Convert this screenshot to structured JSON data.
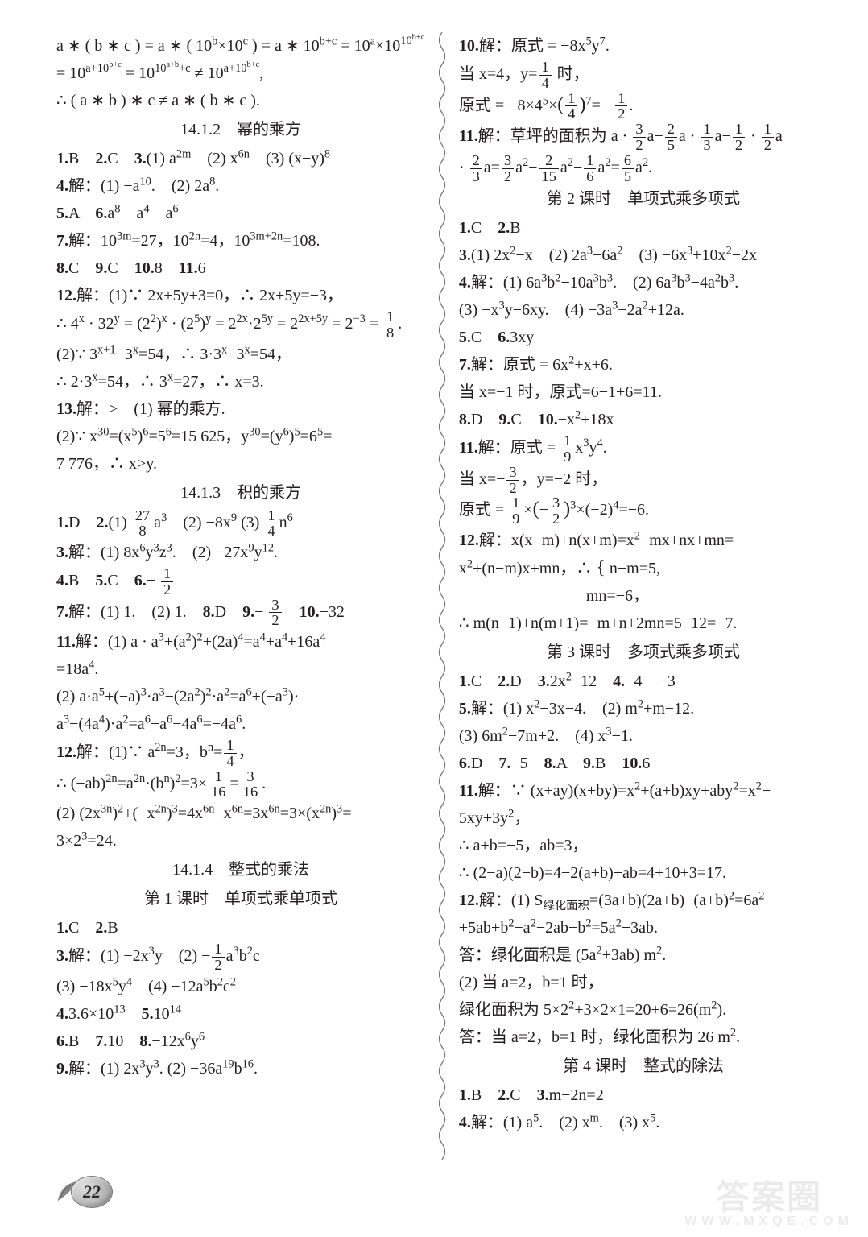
{
  "page_number": "22",
  "watermark": {
    "main": "答案圈",
    "sub": "WWW.MXQE.COM"
  },
  "left": {
    "top": [
      "a ∗ ( b ∗ c ) = a ∗ ( 10<sup>b</sup>×10<sup>c</sup> ) = a ∗ 10<sup>b+c</sup> = 10<sup>a</sup>×10<sup>10<sup>b+c</sup></sup>",
      "= 10<sup>a+10<sup>b+c</sup></sup> = 10<sup>10<sup>a+b</sup>+c</sup> ≠ 10<sup>a+10<sup>b+c</sup></sup>,",
      "∴ ( a ∗ b ) ∗ c ≠ a ∗ ( b ∗ c )."
    ],
    "s1412_title": "14.1.2　幂的乘方",
    "s1412": [
      "<b>1.</b>B　<b>2.</b>C　<b>3.</b>(1) a<sup>2m</sup>　(2) x<sup>6n</sup>　(3) (x−y)<sup>8</sup>",
      "<b>4.</b>解：(1) −a<sup>10</sup>.　(2) 2a<sup>8</sup>.",
      "<b>5.</b>A　<b>6.</b>a<sup>8</sup>　a<sup>4</sup>　a<sup>6</sup>",
      "<b>7.</b>解：10<sup>3m</sup>=27，10<sup>2n</sup>=4，10<sup>3m+2n</sup>=108.",
      "<b>8.</b>C　<b>9.</b>C　<b>10.</b>8　<b>11.</b>6",
      "<b>12.</b>解：(1)∵ 2x+5y+3=0，∴ 2x+5y=−3，",
      "∴ 4<sup>x</sup> · 32<sup>y</sup> = (2<sup>2</sup>)<sup>x</sup> · (2<sup>5</sup>)<sup>y</sup> = 2<sup>2x</sup>·2<sup>5y</sup> = 2<sup>2x+5y</sup> = 2<sup>−3</sup> = <span class='frac'><span class='num'>1</span><span class='den'>8</span></span>.",
      "(2)∵ 3<sup>x+1</sup>−3<sup>x</sup>=54，∴ 3·3<sup>x</sup>−3<sup>x</sup>=54，",
      "∴ 2·3<sup>x</sup>=54，∴ 3<sup>x</sup>=27，∴ x=3.",
      "<b>13.</b>解：&gt;　(1) 幂的乘方.",
      "(2)∵ x<sup>30</sup>=(x<sup>5</sup>)<sup>6</sup>=5<sup>6</sup>=15 625，y<sup>30</sup>=(y<sup>6</sup>)<sup>5</sup>=6<sup>5</sup>=",
      "7 776，∴ x&gt;y."
    ],
    "s1413_title": "14.1.3　积的乘方",
    "s1413": [
      "<b>1.</b>D　<b>2.</b>(1) <span class='frac'><span class='num'>27</span><span class='den'>8</span></span>a<sup>3</sup>　(2) −8x<sup>9</sup> (3) <span class='frac'><span class='num'>1</span><span class='den'>4</span></span>n<sup>6</sup>",
      "<b>3.</b>解：(1) 8x<sup>6</sup>y<sup>3</sup>z<sup>3</sup>.　(2) −27x<sup>9</sup>y<sup>12</sup>.",
      "<b>4.</b>B　<b>5.</b>C　<b>6.</b>− <span class='frac'><span class='num'>1</span><span class='den'>2</span></span>",
      "<b>7.</b>解：(1) 1.　(2) 1.　<b>8.</b>D　<b>9.</b>− <span class='frac'><span class='num'>3</span><span class='den'>2</span></span>　<b>10.</b>−32",
      "<b>11.</b>解：(1) a · a<sup>3</sup>+(a<sup>2</sup>)<sup>2</sup>+(2a)<sup>4</sup>=a<sup>4</sup>+a<sup>4</sup>+16a<sup>4</sup>",
      "=18a<sup>4</sup>.",
      "(2) a·a<sup>5</sup>+(−a)<sup>3</sup>·a<sup>3</sup>−(2a<sup>2</sup>)<sup>2</sup>·a<sup>2</sup>=a<sup>6</sup>+(−a<sup>3</sup>)·",
      "a<sup>3</sup>−(4a<sup>4</sup>)·a<sup>2</sup>=a<sup>6</sup>−a<sup>6</sup>−4a<sup>6</sup>=−4a<sup>6</sup>.",
      "<b>12.</b>解：(1)∵ a<sup>2n</sup>=3，b<sup>n</sup>=<span class='frac'><span class='num'>1</span><span class='den'>4</span></span>，",
      "∴ (−ab)<sup>2n</sup>=a<sup>2n</sup>·(b<sup>n</sup>)<sup>2</sup>=3×<span class='frac'><span class='num'>1</span><span class='den'>16</span></span>=<span class='frac'><span class='num'>3</span><span class='den'>16</span></span>.",
      "(2) (2x<sup>3n</sup>)<sup>2</sup>+(−x<sup>2n</sup>)<sup>3</sup>=4x<sup>6n</sup>−x<sup>6n</sup>=3x<sup>6n</sup>=3×(x<sup>2n</sup>)<sup>3</sup>=",
      "3×2<sup>3</sup>=24."
    ],
    "s1414_title": "14.1.4　整式的乘法",
    "s1414_sub1": "第 1 课时　单项式乘单项式",
    "s1414_1": [
      "<b>1.</b>C　<b>2.</b>B",
      "<b>3.</b>解：(1) −2x<sup>3</sup>y　(2) −<span class='frac'><span class='num'>1</span><span class='den'>2</span></span>a<sup>3</sup>b<sup>2</sup>c",
      "(3) −18x<sup>5</sup>y<sup>4</sup>　(4) −12a<sup>5</sup>b<sup>2</sup>c<sup>2</sup>",
      "<b>4.</b>3.6×10<sup>13</sup>　<b>5.</b>10<sup>14</sup>",
      "<b>6.</b>B　<b>7.</b>10　<b>8.</b>−12x<sup>6</sup>y<sup>6</sup>",
      "<b>9.</b>解：(1) 2x<sup>3</sup>y<sup>3</sup>. (2) −36a<sup>19</sup>b<sup>16</sup>."
    ]
  },
  "right": {
    "cont": [
      "<b>10.</b>解：原式 = −8x<sup>5</sup>y<sup>7</sup>.",
      "当 x=4，y=<span class='frac'><span class='num'>1</span><span class='den'>4</span></span> 时，",
      "原式 = −8×4<sup>5</sup>×<span class='big'>(</span><span class='frac'><span class='num'>1</span><span class='den'>4</span></span><span class='big'>)</span><sup>7</sup>= −<span class='frac'><span class='num'>1</span><span class='den'>2</span></span>.",
      "<b>11.</b>解：草坪的面积为 a · <span class='frac'><span class='num'>3</span><span class='den'>2</span></span>a−<span class='frac'><span class='num'>2</span><span class='den'>5</span></span>a · <span class='frac'><span class='num'>1</span><span class='den'>3</span></span>a−<span class='frac'><span class='num'>1</span><span class='den'>2</span></span> · <span class='frac'><span class='num'>1</span><span class='den'>2</span></span>a",
      "· <span class='frac'><span class='num'>2</span><span class='den'>3</span></span>a=<span class='frac'><span class='num'>3</span><span class='den'>2</span></span>a<sup>2</sup>−<span class='frac'><span class='num'>2</span><span class='den'>15</span></span>a<sup>2</sup>−<span class='frac'><span class='num'>1</span><span class='den'>6</span></span>a<sup>2</sup>=<span class='frac'><span class='num'>6</span><span class='den'>5</span></span>a<sup>2</sup>."
    ],
    "sub2": "第 2 课时　单项式乘多项式",
    "s2": [
      "<b>1.</b>C　<b>2.</b>B",
      "<b>3.</b>(1) 2x<sup>2</sup>−x　(2) 2a<sup>3</sup>−6a<sup>2</sup>　(3) −6x<sup>3</sup>+10x<sup>2</sup>−2x",
      "<b>4.</b>解：(1) 6a<sup>3</sup>b<sup>2</sup>−10a<sup>3</sup>b<sup>3</sup>.　(2) 6a<sup>3</sup>b<sup>3</sup>−4a<sup>2</sup>b<sup>3</sup>.",
      "(3) −x<sup>3</sup>y−6xy.　(4) −3a<sup>3</sup>−2a<sup>2</sup>+12a.",
      "<b>5.</b>C　<b>6.</b>3xy",
      "<b>7.</b>解：原式 = 6x<sup>2</sup>+x+6.",
      "当 x=−1 时，原式=6−1+6=11.",
      "<b>8.</b>D　<b>9.</b>C　<b>10.</b>−x<sup>2</sup>+18x",
      "<b>11.</b>解：原式 = <span class='frac'><span class='num'>1</span><span class='den'>9</span></span>x<sup>3</sup>y<sup>4</sup>.",
      "当 x=−<span class='frac'><span class='num'>3</span><span class='den'>2</span></span>，y=−2 时，",
      "原式 = <span class='frac'><span class='num'>1</span><span class='den'>9</span></span>×<span class='big'>(</span>−<span class='frac'><span class='num'>3</span><span class='den'>2</span></span><span class='big'>)</span><sup>3</sup>×(−2)<sup>4</sup>=−6.",
      "<b>12.</b>解：x(x−m)+n(x+m)=x<sup>2</sup>−mx+nx+mn=",
      "x<sup>2</sup>+(n−m)x+mn，∴ <span class='big'>{</span> n−m=5,<br><span class='sp2'></span><span class='sp2'></span><span class='sp2'></span><span class='sp2'></span><span class='sp2'></span><span class='sp2'></span><span class='sp'></span>mn=−6，",
      "∴ m(n−1)+n(m+1)=−m+n+2mn=5−12=−7."
    ],
    "sub3": "第 3 课时　多项式乘多项式",
    "s3": [
      "<b>1.</b>C　<b>2.</b>D　<b>3.</b>2x<sup>2</sup>−12　<b>4.</b>−4　−3",
      "<b>5.</b>解：(1) x<sup>2</sup>−3x−4.　(2) m<sup>2</sup>+m−12.",
      "(3) 6m<sup>2</sup>−7m+2.　(4) x<sup>3</sup>−1.",
      "<b>6.</b>D　<b>7.</b>−5　<b>8.</b>A　<b>9.</b>B　<b>10.</b>6",
      "<b>11.</b>解：∵ (x+ay)(x+by)=x<sup>2</sup>+(a+b)xy+aby<sup>2</sup>=x<sup>2</sup>−",
      "5xy+3y<sup>2</sup>，",
      "∴ a+b=−5，ab=3，",
      "∴ (2−a)(2−b)=4−2(a+b)+ab=4+10+3=17.",
      "<b>12.</b>解：(1) S<sub>绿化面积</sub>=(3a+b)(2a+b)−(a+b)<sup>2</sup>=6a<sup>2</sup>",
      "+5ab+b<sup>2</sup>−a<sup>2</sup>−2ab−b<sup>2</sup>=5a<sup>2</sup>+3ab.",
      "答：绿化面积是 (5a<sup>2</sup>+3ab) m<sup>2</sup>.",
      "(2) 当 a=2，b=1 时，",
      "绿化面积为 5×2<sup>2</sup>+3×2×1=20+6=26(m<sup>2</sup>).",
      "答：当 a=2，b=1 时，绿化面积为 26 m<sup>2</sup>."
    ],
    "sub4": "第 4 课时　整式的除法",
    "s4": [
      "<b>1.</b>B　<b>2.</b>C　<b>3.</b>m−2n=2",
      "<b>4.</b>解：(1) a<sup>5</sup>.　(2) x<sup>m</sup>.　(3) x<sup>5</sup>."
    ]
  }
}
